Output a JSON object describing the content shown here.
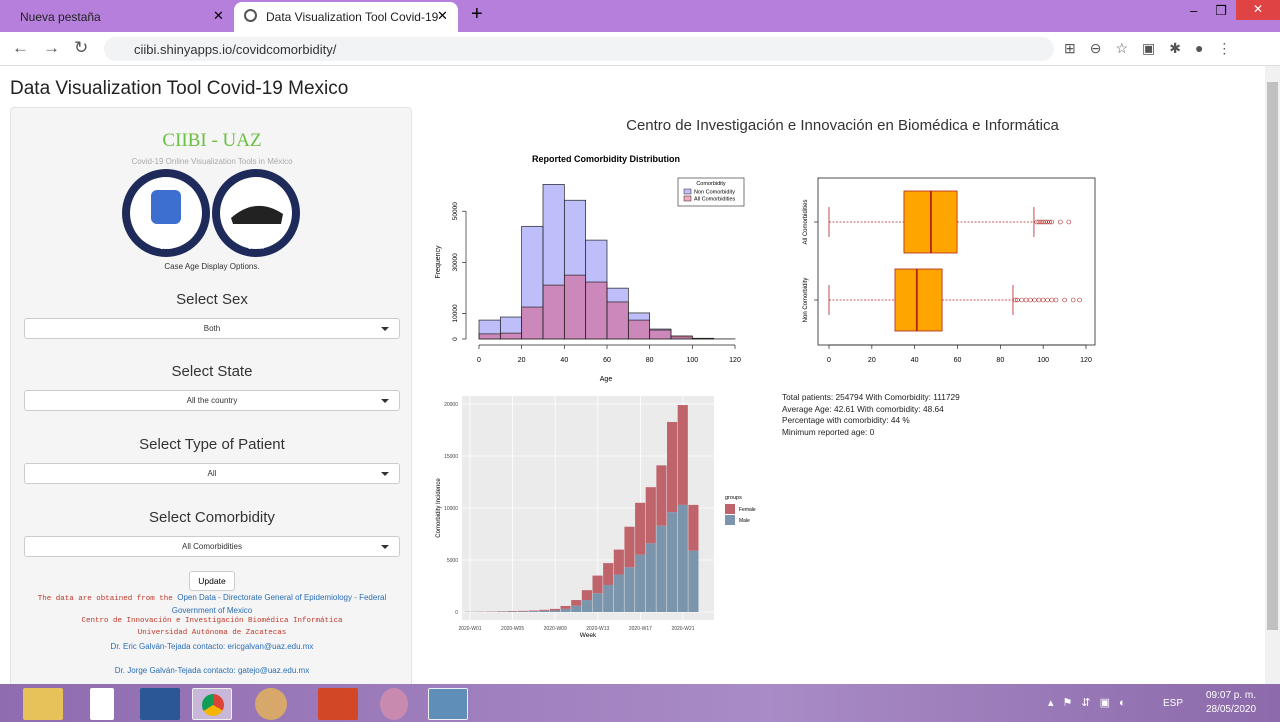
{
  "browser": {
    "tabs": [
      "Nueva pestaña",
      "Data Visualization Tool Covid-19"
    ],
    "url": "ciibi.shinyapps.io/covidcomorbidity/"
  },
  "page": {
    "title": "Data Visualization Tool Covid-19 Mexico",
    "sidebar": {
      "brand": "CIIBI - UAZ",
      "tagline": "Covid-19 Online Visualization Tools in México",
      "logos": [
        "CIIBI",
        "CIIAM"
      ],
      "options_caption": "Case Age Display Options.",
      "inputs": [
        {
          "label": "Select Sex",
          "value": "Both"
        },
        {
          "label": "Select State",
          "value": "All the country"
        },
        {
          "label": "Select Type of Patient",
          "value": "All"
        },
        {
          "label": "Select Comorbidity",
          "value": "All Comorbidities"
        }
      ],
      "button": "Update",
      "source_text": "The data are obtained from the",
      "source_link": "Open Data - Directorate General of Epidemiology - Federal Government of Mexico",
      "institute": "Centro de Innovación e Investigación Biomédica Informática",
      "university": "Universidad Autónoma de Zacatecas",
      "contacts": [
        "Dr. Eric Galván-Tejada contacto: ericgalvan@uaz.edu.mx",
        "Dr. Jorge Galván-Tejada contacto: gatejo@uaz.edu.mx"
      ]
    },
    "header": "Centro de Investigación e Innovación en Biomédica e Informática",
    "stats": [
      "Total patients: 254794 With Comorbidity: 111729",
      "Average Age: 42.61 With comorbidity: 48.64",
      "Percentage with comorbidity: 44 %",
      "Minimum reported age: 0"
    ]
  },
  "chart_data": [
    {
      "type": "histogram",
      "title": "Reported Comorbidity Distribution",
      "x_label": "Age",
      "y_label": "Frequency",
      "bins": [
        0,
        10,
        20,
        30,
        40,
        50,
        60,
        70,
        80,
        90,
        100,
        110,
        120
      ],
      "series": [
        {
          "name": "Non Comorbidity",
          "color": "rgba(110,110,245,0.45)",
          "values": [
            7400,
            8600,
            44100,
            60500,
            54300,
            38700,
            19900,
            10200,
            3900,
            800,
            200,
            0
          ]
        },
        {
          "name": "All Comorbidities",
          "color": "rgba(225,70,110,0.45)",
          "values": [
            2000,
            2300,
            12500,
            21100,
            25000,
            22300,
            14500,
            7400,
            3500,
            1200,
            300,
            50
          ]
        }
      ],
      "legend_title": "Comorbidity",
      "legend": "topright",
      "xlim": [
        0,
        120
      ],
      "xticks": [
        0,
        20,
        40,
        60,
        80,
        100,
        120
      ],
      "ylim": [
        0,
        63000
      ],
      "yticks": [
        0,
        10000,
        30000,
        50000
      ]
    },
    {
      "type": "box",
      "categories": [
        "Non Comorbidity",
        "All Comorbidities"
      ],
      "color": "#ffa500",
      "whisker_color": "#b22222",
      "boxes": [
        {
          "min": 0,
          "q1": 30.8,
          "median": 41,
          "q3": 52.8,
          "max": 85.9,
          "outliers": [
            87,
            88,
            90,
            92,
            94,
            96,
            98,
            100,
            102,
            104,
            106,
            110,
            114,
            117
          ]
        },
        {
          "min": 0,
          "q1": 35,
          "median": 47.6,
          "q3": 59.8,
          "max": 95.7,
          "outliers": [
            97,
            98,
            99,
            100,
            101,
            102,
            103,
            104,
            108,
            112
          ]
        }
      ],
      "xlim": [
        -5,
        125
      ],
      "xticks": [
        0,
        20,
        40,
        60,
        80,
        100,
        120
      ]
    },
    {
      "type": "stacked_bar",
      "x_label": "Week",
      "y_label": "Comorbidity Incidence",
      "legend_title": "groups",
      "categories": [
        "2020-W01",
        null,
        null,
        null,
        "2020-W05",
        null,
        null,
        null,
        "2020-W09",
        null,
        null,
        null,
        "2020-W13",
        null,
        null,
        null,
        "2020-W17",
        null,
        null,
        null,
        "2020-W21",
        null
      ],
      "series": [
        {
          "name": "Male",
          "color": "#7b95ad",
          "values": [
            20,
            25,
            30,
            40,
            50,
            60,
            80,
            120,
            150,
            300,
            600,
            1150,
            1800,
            2600,
            3600,
            4300,
            5500,
            6600,
            8300,
            9600,
            10300,
            5900
          ]
        },
        {
          "name": "Female",
          "color": "#bf646b",
          "values": [
            10,
            15,
            20,
            30,
            40,
            50,
            60,
            90,
            150,
            280,
            550,
            950,
            1700,
            2100,
            2400,
            3900,
            5000,
            5400,
            5800,
            8670,
            9600,
            4400
          ]
        }
      ],
      "ylim": [
        0,
        20000
      ],
      "yticks": [
        0,
        5000,
        10000,
        15000,
        20000
      ],
      "grid": true
    }
  ],
  "taskbar": {
    "language": "ESP",
    "time": "09:07 p. m.",
    "date": "28/05/2020"
  }
}
